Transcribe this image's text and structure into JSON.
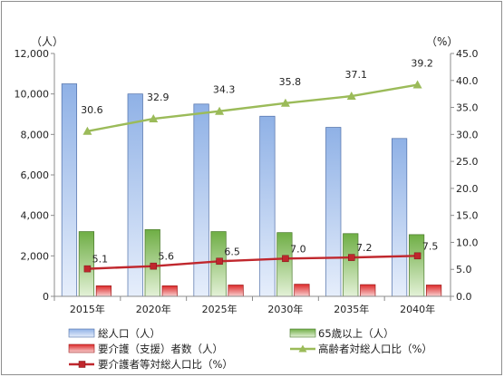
{
  "chart_data": {
    "type": "bar",
    "categories": [
      "2015年",
      "2020年",
      "2025年",
      "2030年",
      "2035年",
      "2040年"
    ],
    "left_axis": {
      "unit": "（人）",
      "ylim": [
        0,
        12000
      ],
      "ticks": [
        "0",
        "2,000",
        "4,000",
        "6,000",
        "8,000",
        "10,000",
        "12,000"
      ]
    },
    "right_axis": {
      "unit": "（%）",
      "ylim": [
        0,
        45
      ],
      "ticks": [
        "0.0",
        "5.0",
        "10.0",
        "15.0",
        "20.0",
        "25.0",
        "30.0",
        "35.0",
        "40.0",
        "45.0"
      ]
    },
    "series": [
      {
        "name": "総人口（人）",
        "type": "bar",
        "axis": "left",
        "color": "#a9c4ec",
        "values": [
          10500,
          10000,
          9500,
          8900,
          8350,
          7800
        ]
      },
      {
        "name": "65歳以上（人）",
        "type": "bar",
        "axis": "left",
        "color": "#8cc264",
        "values": [
          3200,
          3300,
          3200,
          3150,
          3100,
          3050
        ]
      },
      {
        "name": "要介護（支援）者数（人）",
        "type": "bar",
        "axis": "left",
        "color": "#e13a3a",
        "values": [
          520,
          520,
          560,
          600,
          580,
          560
        ]
      },
      {
        "name": "高齢者対総人口比（%）",
        "type": "line",
        "axis": "right",
        "color": "#9bbb59",
        "marker": "triangle",
        "values": [
          30.6,
          32.9,
          34.3,
          35.8,
          37.1,
          39.2
        ],
        "labels": [
          "30.6",
          "32.9",
          "34.3",
          "35.8",
          "37.1",
          "39.2"
        ]
      },
      {
        "name": "要介護者等対総人口比（%）",
        "type": "line",
        "axis": "right",
        "color": "#c0272d",
        "marker": "square",
        "values": [
          5.1,
          5.6,
          6.5,
          7.0,
          7.2,
          7.5
        ],
        "labels": [
          "5.1",
          "5.6",
          "6.5",
          "7.0",
          "7.2",
          "7.5"
        ]
      }
    ],
    "grid": false,
    "legend_position": "bottom"
  }
}
